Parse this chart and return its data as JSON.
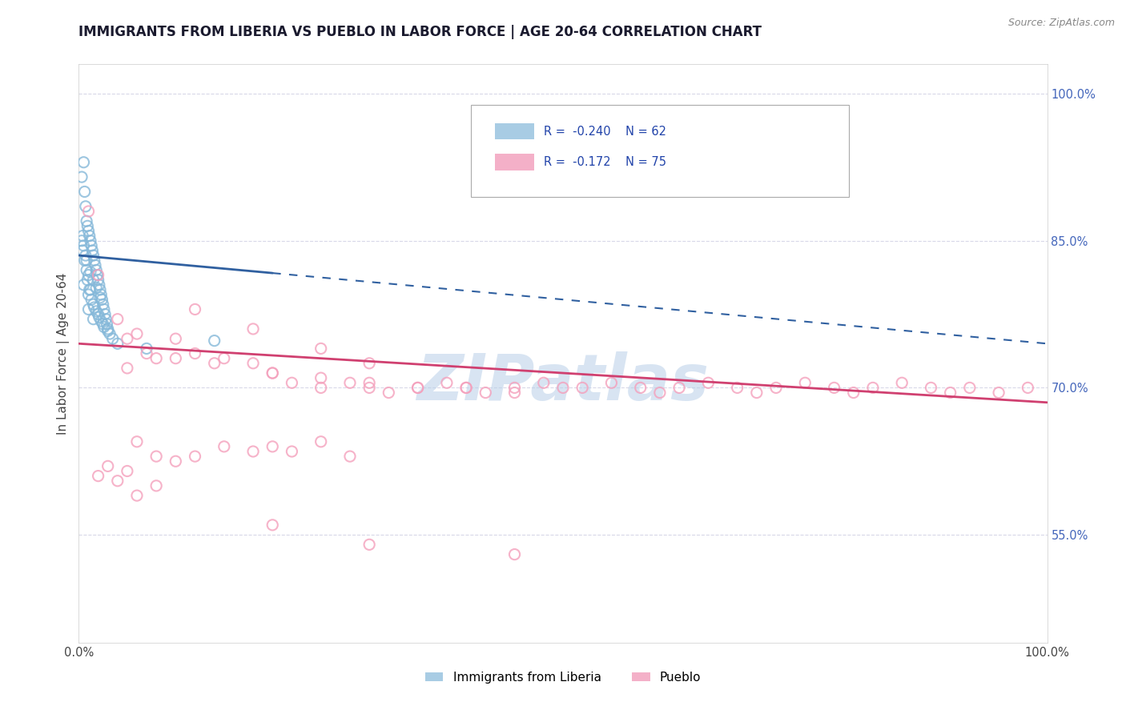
{
  "title": "IMMIGRANTS FROM LIBERIA VS PUEBLO IN LABOR FORCE | AGE 20-64 CORRELATION CHART",
  "source_text": "Source: ZipAtlas.com",
  "ylabel": "In Labor Force | Age 20-64",
  "xlim": [
    0.0,
    100.0
  ],
  "ylim": [
    44.0,
    103.0
  ],
  "y_ticks": [
    55.0,
    70.0,
    85.0,
    100.0
  ],
  "y_tick_labels": [
    "55.0%",
    "70.0%",
    "85.0%",
    "100.0%"
  ],
  "bottom_legend": [
    {
      "label": "Immigrants from Liberia",
      "color": "#85b8d9"
    },
    {
      "label": "Pueblo",
      "color": "#f4a0bc"
    }
  ],
  "blue_scatter_color": "#85b8d9",
  "pink_scatter_color": "#f4a0bc",
  "blue_line_color": "#3060a0",
  "pink_line_color": "#d04070",
  "blue_line_y_start": 83.5,
  "blue_line_y_end": 74.5,
  "blue_line_x_solid_end": 20.0,
  "pink_line_y_start": 74.5,
  "pink_line_y_end": 68.5,
  "watermark": "ZIPatlas",
  "watermark_color": "#b8cfe8",
  "background_color": "#ffffff",
  "grid_color": "#d8d8e8",
  "blue_points": [
    [
      0.3,
      91.5
    ],
    [
      0.5,
      93.0
    ],
    [
      0.6,
      90.0
    ],
    [
      0.7,
      88.5
    ],
    [
      0.8,
      87.0
    ],
    [
      0.9,
      86.5
    ],
    [
      1.0,
      86.0
    ],
    [
      1.1,
      85.5
    ],
    [
      1.2,
      85.0
    ],
    [
      1.3,
      84.5
    ],
    [
      1.4,
      84.0
    ],
    [
      1.5,
      83.5
    ],
    [
      1.6,
      83.0
    ],
    [
      1.7,
      82.5
    ],
    [
      1.8,
      82.0
    ],
    [
      1.9,
      81.5
    ],
    [
      2.0,
      81.0
    ],
    [
      2.1,
      80.5
    ],
    [
      2.2,
      80.0
    ],
    [
      2.3,
      79.5
    ],
    [
      2.4,
      79.0
    ],
    [
      2.5,
      78.5
    ],
    [
      2.6,
      78.0
    ],
    [
      2.7,
      77.5
    ],
    [
      2.8,
      77.0
    ],
    [
      2.9,
      76.5
    ],
    [
      3.0,
      76.0
    ],
    [
      3.2,
      75.5
    ],
    [
      3.5,
      75.0
    ],
    [
      4.0,
      74.5
    ],
    [
      1.0,
      79.5
    ],
    [
      1.5,
      78.5
    ],
    [
      2.0,
      77.5
    ],
    [
      0.5,
      80.5
    ],
    [
      1.0,
      78.0
    ],
    [
      1.5,
      77.0
    ],
    [
      2.5,
      76.5
    ],
    [
      3.0,
      75.8
    ],
    [
      0.8,
      82.0
    ],
    [
      1.2,
      80.0
    ],
    [
      0.4,
      84.0
    ],
    [
      0.6,
      83.0
    ],
    [
      0.9,
      81.0
    ],
    [
      1.1,
      80.0
    ],
    [
      1.3,
      79.0
    ],
    [
      1.6,
      78.2
    ],
    [
      1.8,
      77.8
    ],
    [
      2.1,
      77.2
    ],
    [
      2.3,
      76.8
    ],
    [
      2.6,
      76.2
    ],
    [
      0.7,
      83.5
    ],
    [
      1.0,
      81.5
    ],
    [
      0.3,
      85.0
    ],
    [
      0.5,
      84.5
    ],
    [
      0.8,
      83.0
    ],
    [
      1.2,
      81.8
    ],
    [
      1.5,
      81.0
    ],
    [
      1.8,
      80.2
    ],
    [
      2.2,
      79.2
    ],
    [
      7.0,
      74.0
    ],
    [
      14.0,
      74.8
    ],
    [
      0.4,
      85.5
    ]
  ],
  "pink_points": [
    [
      1.0,
      88.0
    ],
    [
      2.0,
      81.5
    ],
    [
      5.0,
      75.0
    ],
    [
      5.0,
      72.0
    ],
    [
      7.0,
      73.5
    ],
    [
      8.0,
      73.0
    ],
    [
      10.0,
      75.0
    ],
    [
      12.0,
      73.5
    ],
    [
      15.0,
      73.0
    ],
    [
      18.0,
      72.5
    ],
    [
      20.0,
      71.5
    ],
    [
      22.0,
      70.5
    ],
    [
      25.0,
      70.0
    ],
    [
      28.0,
      70.5
    ],
    [
      30.0,
      70.0
    ],
    [
      32.0,
      69.5
    ],
    [
      35.0,
      70.0
    ],
    [
      38.0,
      70.5
    ],
    [
      40.0,
      70.0
    ],
    [
      42.0,
      69.5
    ],
    [
      45.0,
      70.0
    ],
    [
      48.0,
      70.5
    ],
    [
      50.0,
      70.0
    ],
    [
      52.0,
      70.0
    ],
    [
      55.0,
      70.5
    ],
    [
      58.0,
      70.0
    ],
    [
      60.0,
      69.5
    ],
    [
      62.0,
      70.0
    ],
    [
      65.0,
      70.5
    ],
    [
      68.0,
      70.0
    ],
    [
      70.0,
      69.5
    ],
    [
      72.0,
      70.0
    ],
    [
      75.0,
      70.5
    ],
    [
      78.0,
      70.0
    ],
    [
      80.0,
      69.5
    ],
    [
      82.0,
      70.0
    ],
    [
      85.0,
      70.5
    ],
    [
      88.0,
      70.0
    ],
    [
      90.0,
      69.5
    ],
    [
      92.0,
      70.0
    ],
    [
      95.0,
      69.5
    ],
    [
      98.0,
      70.0
    ],
    [
      4.0,
      77.0
    ],
    [
      6.0,
      75.5
    ],
    [
      10.0,
      73.0
    ],
    [
      14.0,
      72.5
    ],
    [
      20.0,
      71.5
    ],
    [
      25.0,
      71.0
    ],
    [
      30.0,
      70.5
    ],
    [
      35.0,
      70.0
    ],
    [
      40.0,
      70.0
    ],
    [
      45.0,
      69.5
    ],
    [
      12.0,
      78.0
    ],
    [
      18.0,
      76.0
    ],
    [
      25.0,
      74.0
    ],
    [
      30.0,
      72.5
    ],
    [
      6.0,
      64.5
    ],
    [
      8.0,
      63.0
    ],
    [
      10.0,
      62.5
    ],
    [
      12.0,
      63.0
    ],
    [
      15.0,
      64.0
    ],
    [
      18.0,
      63.5
    ],
    [
      20.0,
      64.0
    ],
    [
      22.0,
      63.5
    ],
    [
      25.0,
      64.5
    ],
    [
      28.0,
      63.0
    ],
    [
      2.0,
      61.0
    ],
    [
      4.0,
      60.5
    ],
    [
      6.0,
      59.0
    ],
    [
      8.0,
      60.0
    ],
    [
      3.0,
      62.0
    ],
    [
      5.0,
      61.5
    ],
    [
      20.0,
      56.0
    ],
    [
      30.0,
      54.0
    ],
    [
      45.0,
      53.0
    ]
  ]
}
